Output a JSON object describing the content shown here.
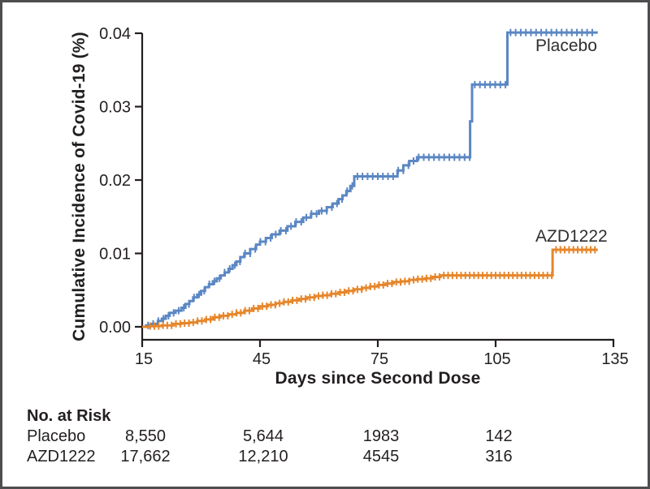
{
  "chart_data": {
    "type": "line",
    "subtype": "kaplan-meier-step",
    "title": "",
    "xlabel": "Days since Second Dose",
    "ylabel": "Cumulative Incidence of Covid-19 (%)",
    "xlim": [
      15,
      135
    ],
    "ylim": [
      0,
      0.04
    ],
    "x_ticks": [
      "15",
      "45",
      "75",
      "105",
      "135"
    ],
    "y_ticks": [
      "0.00",
      "0.01",
      "0.02",
      "0.03",
      "0.04"
    ],
    "grid": false,
    "legend_position": "labels-at-line-end",
    "axis_color": "#231f20",
    "series": [
      {
        "name": "Placebo",
        "color": "#5b87c3",
        "points": [
          [
            15,
            0
          ],
          [
            16,
            0.0002
          ],
          [
            17.5,
            0.0004
          ],
          [
            19,
            0.0008
          ],
          [
            20,
            0.0011
          ],
          [
            21,
            0.0015
          ],
          [
            22,
            0.0019
          ],
          [
            23.5,
            0.0022
          ],
          [
            25,
            0.0026
          ],
          [
            26,
            0.0031
          ],
          [
            27,
            0.0035
          ],
          [
            28,
            0.004
          ],
          [
            29,
            0.0044
          ],
          [
            30,
            0.0049
          ],
          [
            31,
            0.0054
          ],
          [
            32,
            0.0058
          ],
          [
            33,
            0.0062
          ],
          [
            34,
            0.0066
          ],
          [
            35,
            0.007
          ],
          [
            36,
            0.0074
          ],
          [
            37,
            0.0079
          ],
          [
            38,
            0.0084
          ],
          [
            39,
            0.0089
          ],
          [
            40,
            0.0095
          ],
          [
            41,
            0.01
          ],
          [
            42.5,
            0.0106
          ],
          [
            44,
            0.0112
          ],
          [
            45,
            0.0116
          ],
          [
            46.5,
            0.0121
          ],
          [
            48,
            0.0126
          ],
          [
            50,
            0.0131
          ],
          [
            52,
            0.0137
          ],
          [
            54,
            0.0143
          ],
          [
            56,
            0.0149
          ],
          [
            58,
            0.0154
          ],
          [
            60,
            0.0158
          ],
          [
            62,
            0.0163
          ],
          [
            63.5,
            0.0168
          ],
          [
            65,
            0.0174
          ],
          [
            66,
            0.0179
          ],
          [
            67,
            0.0185
          ],
          [
            68,
            0.0192
          ],
          [
            69,
            0.0205
          ],
          [
            80,
            0.0213
          ],
          [
            81.5,
            0.022
          ],
          [
            83,
            0.0226
          ],
          [
            85,
            0.0231
          ],
          [
            98.5,
            0.028
          ],
          [
            99,
            0.033
          ],
          [
            108,
            0.0401
          ],
          [
            131,
            0.0401
          ]
        ],
        "censor_marks": {
          "start": 16.5,
          "end": 130.5,
          "interval": 1.3
        }
      },
      {
        "name": "AZD1222",
        "color": "#e6862a",
        "points": [
          [
            15,
            0
          ],
          [
            17,
            0.0001
          ],
          [
            20,
            0.0002
          ],
          [
            23,
            0.0004
          ],
          [
            25,
            0.0005
          ],
          [
            27,
            0.0006
          ],
          [
            29,
            0.0008
          ],
          [
            31,
            0.001
          ],
          [
            33,
            0.0013
          ],
          [
            35,
            0.0015
          ],
          [
            37,
            0.0017
          ],
          [
            39,
            0.0019
          ],
          [
            41,
            0.0022
          ],
          [
            43,
            0.0025
          ],
          [
            45,
            0.0028
          ],
          [
            47,
            0.003
          ],
          [
            49,
            0.0032
          ],
          [
            51,
            0.0034
          ],
          [
            53,
            0.0036
          ],
          [
            55,
            0.0038
          ],
          [
            57,
            0.004
          ],
          [
            59,
            0.0042
          ],
          [
            61,
            0.0043
          ],
          [
            63,
            0.0045
          ],
          [
            65,
            0.0047
          ],
          [
            67,
            0.0049
          ],
          [
            69,
            0.0051
          ],
          [
            71,
            0.0053
          ],
          [
            73,
            0.0055
          ],
          [
            75,
            0.0057
          ],
          [
            77,
            0.0059
          ],
          [
            79,
            0.0061
          ],
          [
            81,
            0.0062
          ],
          [
            83,
            0.0064
          ],
          [
            85,
            0.0065
          ],
          [
            87,
            0.0066
          ],
          [
            89,
            0.0068
          ],
          [
            91,
            0.007
          ],
          [
            119,
            0.007
          ],
          [
            119.5,
            0.0105
          ],
          [
            131,
            0.0105
          ]
        ],
        "censor_marks": {
          "start": 17,
          "end": 130.5,
          "interval": 1.1
        }
      }
    ]
  },
  "risk_table": {
    "header": "No. at Risk",
    "rows": [
      {
        "label": "Placebo",
        "values": [
          "8,550",
          "5,644",
          "1983",
          "142"
        ]
      },
      {
        "label": "AZD1222",
        "values": [
          "17,662",
          "12,210",
          "4545",
          "316"
        ]
      }
    ]
  }
}
